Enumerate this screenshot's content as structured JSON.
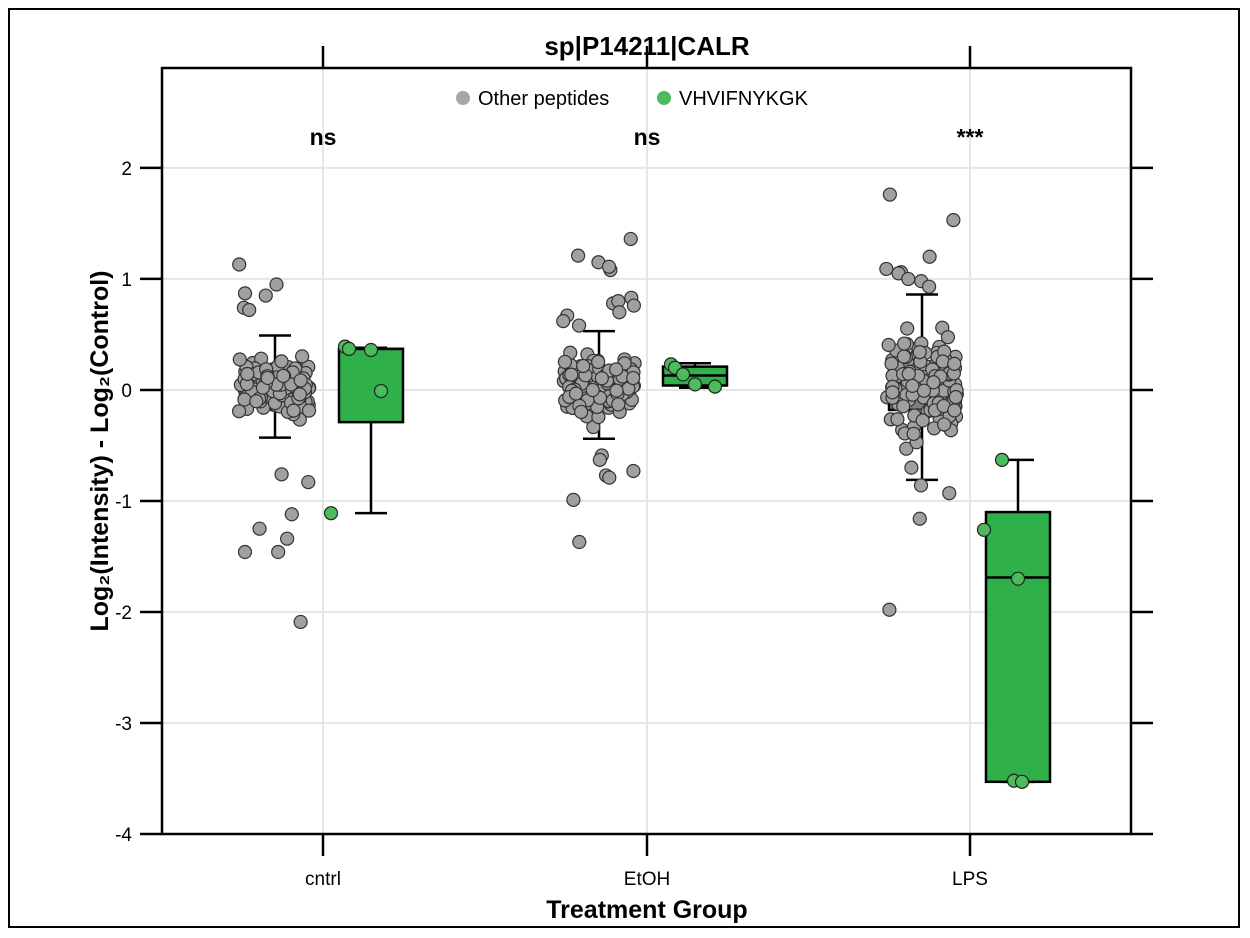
{
  "chart_data": {
    "type": "box",
    "title": "sp|P14211|CALR",
    "xlabel": "Treatment Group",
    "ylabel": "Log₂(Intensity) - Log₂(Control)",
    "ylim": [
      -4,
      2.9
    ],
    "yticks": [
      -4,
      -3,
      -2,
      -1,
      0,
      1,
      2
    ],
    "categories": [
      "cntrl",
      "EtOH",
      "LPS"
    ],
    "grid": true,
    "legend": {
      "placement": "top-center",
      "entries": [
        {
          "name": "Other peptides",
          "color": "#a6a6a6"
        },
        {
          "name": "VHVIFNYKGK",
          "color": "#4cbb5c"
        }
      ]
    },
    "significance": [
      "ns",
      "ns",
      "***"
    ],
    "series": [
      {
        "name": "Other peptides",
        "color": "#7f7f7f",
        "point_color": "#a0a0a0",
        "boxes": [
          {
            "category": "cntrl",
            "whisker_low": -0.43,
            "q1": -0.08,
            "median": 0.03,
            "q3": 0.14,
            "whisker_high": 0.49
          },
          {
            "category": "EtOH",
            "whisker_low": -0.44,
            "q1": -0.08,
            "median": 0.05,
            "q3": 0.17,
            "whisker_high": 0.53
          },
          {
            "category": "LPS",
            "whisker_low": -0.81,
            "q1": -0.18,
            "median": 0.02,
            "q3": 0.24,
            "whisker_high": 0.86
          }
        ],
        "outliers": [
          {
            "category": "cntrl",
            "values": [
              1.13,
              0.95,
              0.87,
              0.85,
              0.74,
              0.72,
              -0.76,
              -0.83,
              -1.12,
              -1.25,
              -1.34,
              -1.46,
              -1.46,
              -2.09
            ]
          },
          {
            "category": "EtOH",
            "values": [
              1.36,
              1.21,
              1.15,
              1.08,
              1.11,
              0.83,
              0.78,
              0.8,
              0.76,
              0.7,
              0.67,
              0.62,
              0.58,
              -0.59,
              -0.63,
              -0.73,
              -0.77,
              -0.79,
              -0.99,
              -1.37
            ]
          },
          {
            "category": "LPS",
            "values": [
              1.76,
              1.53,
              1.2,
              1.09,
              1.06,
              1.05,
              1.0,
              0.98,
              0.93,
              -0.93,
              -0.7,
              -0.86,
              -1.16,
              -1.98
            ]
          }
        ]
      },
      {
        "name": "VHVIFNYKGK",
        "color": "#30b04a",
        "boxes": [
          {
            "category": "cntrl",
            "whisker_low": -1.11,
            "q1": -0.29,
            "median": 0.37,
            "q3": 0.37,
            "whisker_high": 0.38
          },
          {
            "category": "EtOH",
            "whisker_low": 0.02,
            "q1": 0.04,
            "median": 0.13,
            "q3": 0.21,
            "whisker_high": 0.24
          },
          {
            "category": "LPS",
            "whisker_low": -3.53,
            "q1": -3.53,
            "median": -1.69,
            "q3": -1.1,
            "whisker_high": -0.63
          }
        ],
        "points": [
          {
            "category": "cntrl",
            "values": [
              0.39,
              0.37,
              0.36,
              -0.01,
              -1.11
            ]
          },
          {
            "category": "EtOH",
            "values": [
              0.23,
              0.2,
              0.14,
              0.05,
              0.03
            ]
          },
          {
            "category": "LPS",
            "values": [
              -0.63,
              -1.26,
              -1.7,
              -3.52,
              -3.53
            ]
          }
        ]
      }
    ]
  }
}
